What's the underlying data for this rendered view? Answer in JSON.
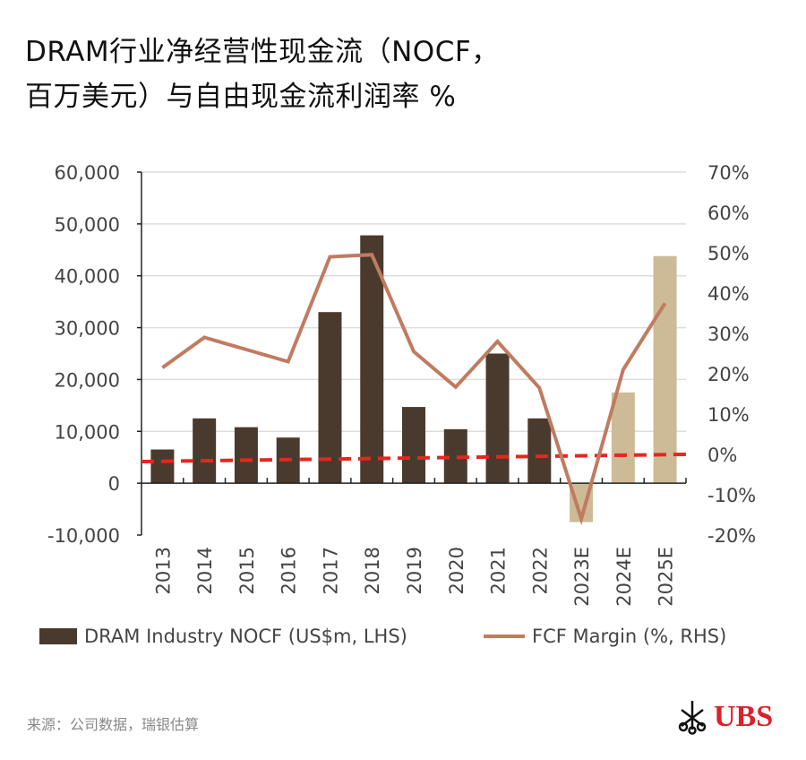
{
  "title_line1": "DRAM行业净经营性现金流（NOCF，",
  "title_line2": "百万美元）与自由现金流利润率 %",
  "chart_data": {
    "type": "bar+line",
    "categories": [
      "2013",
      "2014",
      "2015",
      "2016",
      "2017",
      "2018",
      "2019",
      "2020",
      "2021",
      "2022",
      "2023E",
      "2024E",
      "2025E"
    ],
    "series": [
      {
        "name": "DRAM Industry NOCF (US$m, LHS)",
        "type": "bar",
        "axis": "left",
        "values": [
          6500,
          12500,
          10800,
          8800,
          33000,
          47800,
          14700,
          10400,
          25000,
          12500,
          -7500,
          17500,
          43800
        ],
        "estimate_from_index": 10
      },
      {
        "name": "FCF Margin (%, RHS)",
        "type": "line",
        "axis": "right",
        "values": [
          21.5,
          29,
          26,
          23,
          49,
          49.5,
          25.5,
          16.7,
          28,
          16.5,
          -16,
          21,
          37.5
        ]
      }
    ],
    "reference_line": {
      "axis": "right",
      "value": 0,
      "style": "dashed",
      "color": "#e8251f"
    },
    "left_axis": {
      "ylim": [
        -10000,
        60000
      ],
      "ticks": [
        "-10,000",
        "0",
        "10,000",
        "20,000",
        "30,000",
        "40,000",
        "50,000",
        "60,000"
      ],
      "tick_values": [
        -10000,
        0,
        10000,
        20000,
        30000,
        40000,
        50000,
        60000
      ]
    },
    "right_axis": {
      "ylim": [
        -20,
        70
      ],
      "ticks": [
        "-20%",
        "-10%",
        "0%",
        "10%",
        "20%",
        "30%",
        "40%",
        "50%",
        "60%",
        "70%"
      ],
      "tick_values": [
        -20,
        -10,
        0,
        10,
        20,
        30,
        40,
        50,
        60,
        70
      ]
    },
    "grid": true,
    "legend_position": "bottom",
    "colors": {
      "bar_actual": "#4a3a2e",
      "bar_estimate": "#cdbb97",
      "line": "#c07b60",
      "grid": "#dddddd"
    }
  },
  "footer": {
    "source": "来源：公司数据，瑞银估算",
    "logo_text": "UBS"
  }
}
